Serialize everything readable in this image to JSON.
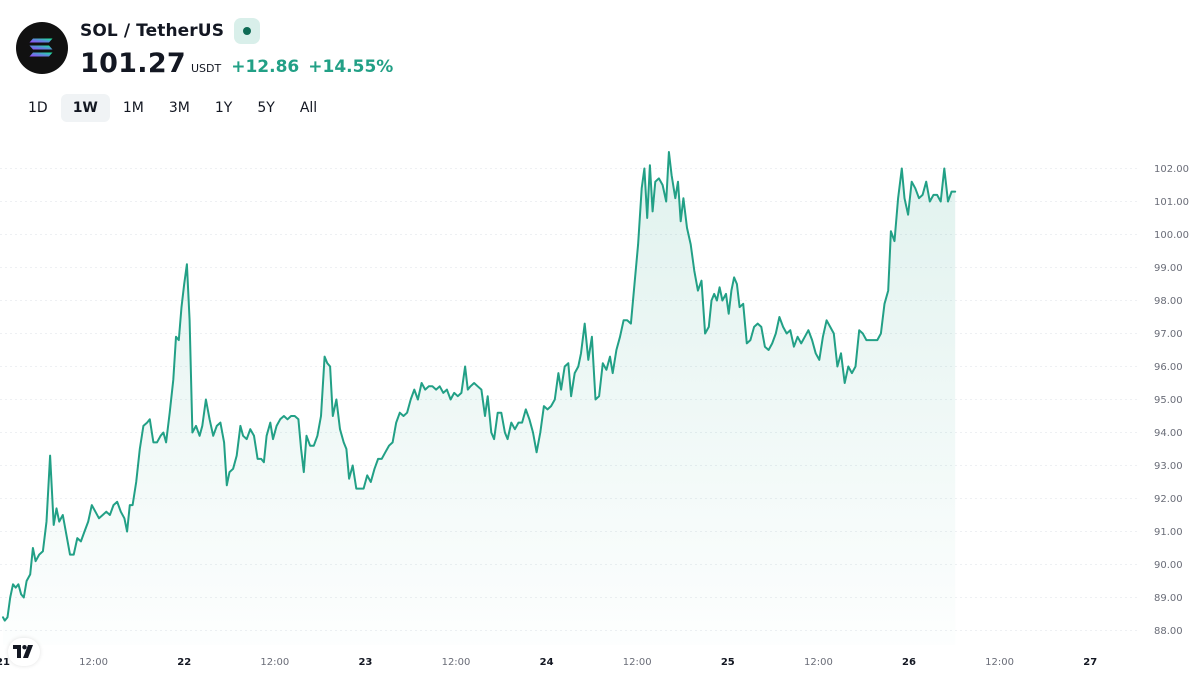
{
  "header": {
    "pair": "SOL / TetherUS",
    "price": "101.27",
    "currency": "USDT",
    "change": "+12.86",
    "change_pct": "+14.55%",
    "icons": {
      "logo": "solana-logo-icon",
      "status": "market-status-icon",
      "badge": "tradingview-logo-icon"
    }
  },
  "ranges": [
    {
      "label": "1D",
      "active": false
    },
    {
      "label": "1W",
      "active": true
    },
    {
      "label": "1M",
      "active": false
    },
    {
      "label": "3M",
      "active": false
    },
    {
      "label": "1Y",
      "active": false
    },
    {
      "label": "5Y",
      "active": false
    },
    {
      "label": "All",
      "active": false
    }
  ],
  "colors": {
    "line": "#22a086",
    "area_top": "#22a086",
    "grid": "#eef0f3",
    "axis_text": "#6a6d78"
  },
  "chart_data": {
    "type": "area",
    "title": "",
    "xlabel": "",
    "ylabel": "",
    "ylim": [
      87.5,
      103.3
    ],
    "grid": true,
    "y_ticks": [
      "88.00",
      "89.00",
      "90.00",
      "91.00",
      "92.00",
      "93.00",
      "94.00",
      "95.00",
      "96.00",
      "97.00",
      "98.00",
      "99.00",
      "100.00",
      "101.00",
      "102.00"
    ],
    "x_ticks": [
      {
        "label": "21",
        "day": true
      },
      {
        "label": "12:00",
        "day": false
      },
      {
        "label": "22",
        "day": true
      },
      {
        "label": "12:00",
        "day": false
      },
      {
        "label": "23",
        "day": true
      },
      {
        "label": "12:00",
        "day": false
      },
      {
        "label": "24",
        "day": true
      },
      {
        "label": "12:00",
        "day": false
      },
      {
        "label": "25",
        "day": true
      },
      {
        "label": "12:00",
        "day": false
      },
      {
        "label": "26",
        "day": true
      },
      {
        "label": "12:00",
        "day": false
      },
      {
        "label": "27",
        "day": true
      }
    ],
    "series": [
      {
        "points": [
          [
            0.0,
            88.4
          ],
          [
            0.02,
            88.3
          ],
          [
            0.05,
            88.4
          ],
          [
            0.08,
            89.0
          ],
          [
            0.11,
            89.4
          ],
          [
            0.14,
            89.3
          ],
          [
            0.17,
            89.4
          ],
          [
            0.2,
            89.1
          ],
          [
            0.23,
            89.0
          ],
          [
            0.26,
            89.5
          ],
          [
            0.3,
            89.7
          ],
          [
            0.33,
            90.5
          ],
          [
            0.36,
            90.1
          ],
          [
            0.4,
            90.3
          ],
          [
            0.44,
            90.4
          ],
          [
            0.48,
            91.3
          ],
          [
            0.52,
            93.3
          ],
          [
            0.56,
            91.2
          ],
          [
            0.59,
            91.7
          ],
          [
            0.62,
            91.3
          ],
          [
            0.66,
            91.5
          ],
          [
            0.7,
            90.9
          ],
          [
            0.74,
            90.3
          ],
          [
            0.78,
            90.3
          ],
          [
            0.82,
            90.8
          ],
          [
            0.86,
            90.7
          ],
          [
            0.9,
            91.0
          ],
          [
            0.94,
            91.3
          ],
          [
            0.98,
            91.8
          ],
          [
            1.02,
            91.6
          ],
          [
            1.06,
            91.4
          ],
          [
            1.1,
            91.5
          ],
          [
            1.14,
            91.6
          ],
          [
            1.18,
            91.5
          ],
          [
            1.22,
            91.8
          ],
          [
            1.26,
            91.9
          ],
          [
            1.3,
            91.6
          ],
          [
            1.34,
            91.4
          ],
          [
            1.37,
            91.0
          ],
          [
            1.4,
            91.8
          ],
          [
            1.43,
            91.8
          ],
          [
            1.47,
            92.5
          ],
          [
            1.51,
            93.5
          ],
          [
            1.55,
            94.2
          ],
          [
            1.59,
            94.3
          ],
          [
            1.62,
            94.4
          ],
          [
            1.66,
            93.7
          ],
          [
            1.7,
            93.7
          ],
          [
            1.74,
            93.9
          ],
          [
            1.77,
            94.0
          ],
          [
            1.8,
            93.7
          ],
          [
            1.84,
            94.6
          ],
          [
            1.88,
            95.6
          ],
          [
            1.91,
            96.9
          ],
          [
            1.94,
            96.8
          ],
          [
            1.97,
            97.8
          ],
          [
            2.0,
            98.5
          ],
          [
            2.03,
            99.1
          ],
          [
            2.06,
            97.4
          ],
          [
            2.09,
            94.0
          ],
          [
            2.13,
            94.2
          ],
          [
            2.17,
            93.9
          ],
          [
            2.2,
            94.2
          ],
          [
            2.24,
            95.0
          ],
          [
            2.28,
            94.4
          ],
          [
            2.32,
            93.9
          ],
          [
            2.36,
            94.2
          ],
          [
            2.4,
            94.3
          ],
          [
            2.44,
            93.7
          ],
          [
            2.47,
            92.4
          ],
          [
            2.5,
            92.8
          ],
          [
            2.54,
            92.9
          ],
          [
            2.58,
            93.3
          ],
          [
            2.62,
            94.2
          ],
          [
            2.65,
            93.9
          ],
          [
            2.69,
            93.8
          ],
          [
            2.73,
            94.1
          ],
          [
            2.77,
            93.9
          ],
          [
            2.81,
            93.2
          ],
          [
            2.85,
            93.2
          ],
          [
            2.88,
            93.1
          ],
          [
            2.91,
            93.9
          ],
          [
            2.95,
            94.3
          ],
          [
            2.98,
            93.8
          ],
          [
            3.02,
            94.2
          ],
          [
            3.06,
            94.4
          ],
          [
            3.1,
            94.5
          ],
          [
            3.14,
            94.4
          ],
          [
            3.18,
            94.5
          ],
          [
            3.22,
            94.5
          ],
          [
            3.26,
            94.4
          ],
          [
            3.29,
            93.5
          ],
          [
            3.32,
            92.8
          ],
          [
            3.35,
            93.9
          ],
          [
            3.39,
            93.6
          ],
          [
            3.43,
            93.6
          ],
          [
            3.47,
            93.9
          ],
          [
            3.51,
            94.5
          ],
          [
            3.55,
            96.3
          ],
          [
            3.58,
            96.1
          ],
          [
            3.61,
            96.0
          ],
          [
            3.64,
            94.5
          ],
          [
            3.68,
            95.0
          ],
          [
            3.72,
            94.1
          ],
          [
            3.76,
            93.7
          ],
          [
            3.79,
            93.5
          ],
          [
            3.82,
            92.6
          ],
          [
            3.86,
            93.0
          ],
          [
            3.9,
            92.3
          ],
          [
            3.94,
            92.3
          ],
          [
            3.98,
            92.3
          ],
          [
            4.02,
            92.7
          ],
          [
            4.06,
            92.5
          ],
          [
            4.1,
            92.9
          ],
          [
            4.14,
            93.2
          ],
          [
            4.18,
            93.2
          ],
          [
            4.22,
            93.4
          ],
          [
            4.26,
            93.6
          ],
          [
            4.3,
            93.7
          ],
          [
            4.34,
            94.3
          ],
          [
            4.38,
            94.6
          ],
          [
            4.42,
            94.5
          ],
          [
            4.46,
            94.6
          ],
          [
            4.5,
            95.0
          ],
          [
            4.54,
            95.3
          ],
          [
            4.58,
            95.0
          ],
          [
            4.62,
            95.5
          ],
          [
            4.66,
            95.3
          ],
          [
            4.7,
            95.4
          ],
          [
            4.74,
            95.4
          ],
          [
            4.78,
            95.3
          ],
          [
            4.82,
            95.4
          ],
          [
            4.86,
            95.2
          ],
          [
            4.9,
            95.3
          ],
          [
            4.94,
            95.0
          ],
          [
            4.98,
            95.2
          ],
          [
            5.02,
            95.1
          ],
          [
            5.06,
            95.2
          ],
          [
            5.1,
            96.0
          ],
          [
            5.13,
            95.3
          ],
          [
            5.16,
            95.4
          ],
          [
            5.2,
            95.5
          ],
          [
            5.24,
            95.4
          ],
          [
            5.28,
            95.3
          ],
          [
            5.32,
            94.5
          ],
          [
            5.35,
            95.1
          ],
          [
            5.39,
            94.0
          ],
          [
            5.42,
            93.8
          ],
          [
            5.46,
            94.6
          ],
          [
            5.5,
            94.6
          ],
          [
            5.54,
            94.0
          ],
          [
            5.57,
            93.8
          ],
          [
            5.61,
            94.3
          ],
          [
            5.65,
            94.1
          ],
          [
            5.69,
            94.3
          ],
          [
            5.73,
            94.3
          ],
          [
            5.77,
            94.7
          ],
          [
            5.81,
            94.4
          ],
          [
            5.85,
            94.0
          ],
          [
            5.89,
            93.4
          ],
          [
            5.93,
            94.0
          ],
          [
            5.97,
            94.8
          ],
          [
            6.01,
            94.7
          ],
          [
            6.05,
            94.8
          ],
          [
            6.09,
            95.0
          ],
          [
            6.13,
            95.8
          ],
          [
            6.16,
            95.3
          ],
          [
            6.2,
            96.0
          ],
          [
            6.24,
            96.1
          ],
          [
            6.27,
            95.1
          ],
          [
            6.31,
            95.8
          ],
          [
            6.35,
            96.0
          ],
          [
            6.38,
            96.4
          ],
          [
            6.42,
            97.3
          ],
          [
            6.46,
            96.2
          ],
          [
            6.5,
            96.9
          ],
          [
            6.54,
            95.0
          ],
          [
            6.58,
            95.1
          ],
          [
            6.62,
            96.1
          ],
          [
            6.66,
            95.9
          ],
          [
            6.7,
            96.3
          ],
          [
            6.73,
            95.8
          ],
          [
            6.77,
            96.5
          ],
          [
            6.81,
            96.9
          ],
          [
            6.85,
            97.4
          ],
          [
            6.89,
            97.4
          ],
          [
            6.93,
            97.3
          ],
          [
            6.97,
            98.5
          ],
          [
            7.01,
            99.7
          ],
          [
            7.05,
            101.4
          ],
          [
            7.08,
            102.0
          ],
          [
            7.11,
            100.5
          ],
          [
            7.14,
            102.1
          ],
          [
            7.17,
            100.7
          ],
          [
            7.2,
            101.6
          ],
          [
            7.24,
            101.7
          ],
          [
            7.28,
            101.5
          ],
          [
            7.32,
            101.0
          ],
          [
            7.35,
            102.5
          ],
          [
            7.38,
            101.8
          ],
          [
            7.42,
            101.1
          ],
          [
            7.45,
            101.6
          ],
          [
            7.48,
            100.4
          ],
          [
            7.51,
            101.1
          ],
          [
            7.55,
            100.2
          ],
          [
            7.59,
            99.7
          ],
          [
            7.63,
            98.9
          ],
          [
            7.67,
            98.3
          ],
          [
            7.71,
            98.6
          ],
          [
            7.75,
            97.0
          ],
          [
            7.79,
            97.2
          ],
          [
            7.82,
            98.0
          ],
          [
            7.85,
            98.2
          ],
          [
            7.88,
            98.0
          ],
          [
            7.91,
            98.4
          ],
          [
            7.94,
            98.0
          ],
          [
            7.98,
            98.2
          ],
          [
            8.01,
            97.6
          ],
          [
            8.04,
            98.3
          ],
          [
            8.07,
            98.7
          ],
          [
            8.1,
            98.5
          ],
          [
            8.13,
            97.8
          ],
          [
            8.17,
            97.9
          ],
          [
            8.21,
            96.7
          ],
          [
            8.25,
            96.8
          ],
          [
            8.29,
            97.2
          ],
          [
            8.33,
            97.3
          ],
          [
            8.37,
            97.2
          ],
          [
            8.41,
            96.6
          ],
          [
            8.45,
            96.5
          ],
          [
            8.49,
            96.7
          ],
          [
            8.53,
            97.0
          ],
          [
            8.57,
            97.5
          ],
          [
            8.61,
            97.2
          ],
          [
            8.65,
            97.0
          ],
          [
            8.69,
            97.1
          ],
          [
            8.73,
            96.6
          ],
          [
            8.77,
            96.9
          ],
          [
            8.81,
            96.7
          ],
          [
            8.85,
            96.9
          ],
          [
            8.89,
            97.1
          ],
          [
            8.93,
            96.8
          ],
          [
            8.97,
            96.4
          ],
          [
            9.01,
            96.2
          ],
          [
            9.05,
            96.9
          ],
          [
            9.09,
            97.4
          ],
          [
            9.13,
            97.2
          ],
          [
            9.17,
            97.0
          ],
          [
            9.21,
            96.0
          ],
          [
            9.25,
            96.4
          ],
          [
            9.29,
            95.5
          ],
          [
            9.33,
            96.0
          ],
          [
            9.37,
            95.8
          ],
          [
            9.41,
            96.0
          ],
          [
            9.45,
            97.1
          ],
          [
            9.49,
            97.0
          ],
          [
            9.53,
            96.8
          ],
          [
            9.57,
            96.8
          ],
          [
            9.61,
            96.8
          ],
          [
            9.65,
            96.8
          ],
          [
            9.69,
            97.0
          ],
          [
            9.73,
            97.9
          ],
          [
            9.77,
            98.3
          ],
          [
            9.8,
            100.1
          ],
          [
            9.84,
            99.8
          ],
          [
            9.88,
            101.1
          ],
          [
            9.92,
            102.0
          ],
          [
            9.95,
            101.1
          ],
          [
            9.99,
            100.6
          ],
          [
            10.03,
            101.6
          ],
          [
            10.07,
            101.4
          ],
          [
            10.11,
            101.1
          ],
          [
            10.15,
            101.2
          ],
          [
            10.19,
            101.6
          ],
          [
            10.23,
            101.0
          ],
          [
            10.27,
            101.2
          ],
          [
            10.31,
            101.2
          ],
          [
            10.35,
            101.0
          ],
          [
            10.39,
            102.0
          ],
          [
            10.43,
            101.0
          ],
          [
            10.47,
            101.3
          ],
          [
            10.51,
            101.3
          ]
        ],
        "x_unit": "half-days since 21 00:00",
        "last_value": 101.27
      }
    ]
  }
}
